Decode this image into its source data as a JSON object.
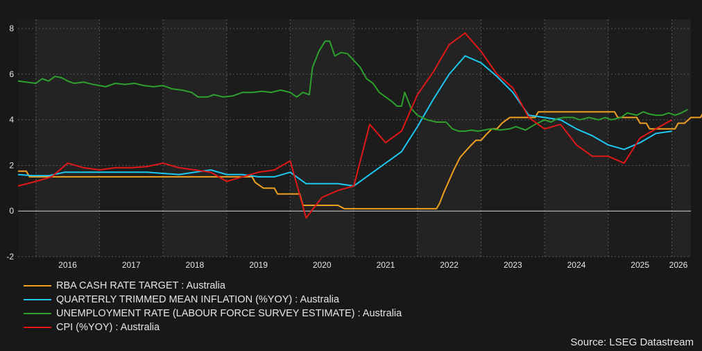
{
  "chart_data": {
    "type": "line",
    "ylim": [
      -2,
      8.4
    ],
    "yticks": [
      -2,
      0,
      2,
      4,
      6,
      8
    ],
    "xlim": [
      2015.72,
      2026.3
    ],
    "xticks": [
      "2016",
      "2017",
      "2018",
      "2019",
      "2020",
      "2021",
      "2022",
      "2023",
      "2024",
      "2025",
      "2026"
    ],
    "grid": true,
    "legend_position": "bottom-left",
    "source": "Source: LSEG Datastream",
    "series": [
      {
        "name": "RBA CASH RATE TARGET : Australia",
        "color": "#f0a020",
        "points": [
          [
            2015.72,
            1.75
          ],
          [
            2015.85,
            1.75
          ],
          [
            2015.9,
            1.5
          ],
          [
            2016.0,
            1.5
          ],
          [
            2016.35,
            1.5
          ],
          [
            2016.5,
            1.5
          ],
          [
            2016.6,
            1.5
          ],
          [
            2017.0,
            1.5
          ],
          [
            2018.0,
            1.5
          ],
          [
            2018.5,
            1.5
          ],
          [
            2019.0,
            1.5
          ],
          [
            2019.4,
            1.5
          ],
          [
            2019.45,
            1.25
          ],
          [
            2019.58,
            1.0
          ],
          [
            2019.75,
            1.0
          ],
          [
            2019.8,
            0.75
          ],
          [
            2020.15,
            0.75
          ],
          [
            2020.2,
            0.25
          ],
          [
            2020.75,
            0.25
          ],
          [
            2020.85,
            0.1
          ],
          [
            2021.5,
            0.1
          ],
          [
            2022.3,
            0.1
          ],
          [
            2022.35,
            0.35
          ],
          [
            2022.42,
            0.85
          ],
          [
            2022.5,
            1.35
          ],
          [
            2022.58,
            1.85
          ],
          [
            2022.67,
            2.35
          ],
          [
            2022.75,
            2.6
          ],
          [
            2022.83,
            2.85
          ],
          [
            2022.92,
            3.1
          ],
          [
            2023.0,
            3.1
          ],
          [
            2023.08,
            3.35
          ],
          [
            2023.17,
            3.6
          ],
          [
            2023.25,
            3.6
          ],
          [
            2023.33,
            3.85
          ],
          [
            2023.45,
            4.1
          ],
          [
            2023.85,
            4.1
          ],
          [
            2023.9,
            4.35
          ],
          [
            2024.5,
            4.35
          ],
          [
            2025.1,
            4.35
          ],
          [
            2025.15,
            4.1
          ],
          [
            2025.45,
            4.1
          ],
          [
            2025.5,
            3.85
          ],
          [
            2025.6,
            3.85
          ],
          [
            2025.65,
            3.6
          ],
          [
            2025.95,
            3.6
          ],
          [
            2026.05,
            3.6
          ],
          [
            2026.1,
            3.85
          ],
          [
            2026.2,
            3.85
          ],
          [
            2026.3,
            4.1
          ],
          [
            2026.45,
            4.1
          ],
          [
            2026.5,
            4.35
          ],
          [
            2026.58,
            4.35
          ]
        ]
      },
      {
        "name": "QUARTERLY TRIMMED MEAN INFLATION (%YOY) : Australia",
        "color": "#1ec8f0",
        "points": [
          [
            2015.72,
            1.6
          ],
          [
            2015.95,
            1.55
          ],
          [
            2016.2,
            1.55
          ],
          [
            2016.45,
            1.7
          ],
          [
            2016.7,
            1.7
          ],
          [
            2017.0,
            1.7
          ],
          [
            2017.25,
            1.7
          ],
          [
            2017.5,
            1.7
          ],
          [
            2017.75,
            1.7
          ],
          [
            2018.0,
            1.65
          ],
          [
            2018.25,
            1.6
          ],
          [
            2018.5,
            1.7
          ],
          [
            2018.75,
            1.8
          ],
          [
            2019.0,
            1.6
          ],
          [
            2019.25,
            1.6
          ],
          [
            2019.5,
            1.5
          ],
          [
            2019.75,
            1.5
          ],
          [
            2020.0,
            1.7
          ],
          [
            2020.25,
            1.2
          ],
          [
            2020.5,
            1.2
          ],
          [
            2020.75,
            1.2
          ],
          [
            2021.0,
            1.1
          ],
          [
            2021.25,
            1.6
          ],
          [
            2021.5,
            2.1
          ],
          [
            2021.75,
            2.6
          ],
          [
            2022.0,
            3.7
          ],
          [
            2022.25,
            4.9
          ],
          [
            2022.5,
            6.0
          ],
          [
            2022.75,
            6.8
          ],
          [
            2023.0,
            6.5
          ],
          [
            2023.25,
            5.9
          ],
          [
            2023.5,
            5.2
          ],
          [
            2023.75,
            4.2
          ],
          [
            2024.0,
            4.1
          ],
          [
            2024.25,
            4.0
          ],
          [
            2024.5,
            3.6
          ],
          [
            2024.75,
            3.3
          ],
          [
            2025.0,
            2.9
          ],
          [
            2025.25,
            2.7
          ],
          [
            2025.5,
            3.0
          ],
          [
            2025.75,
            3.4
          ],
          [
            2026.0,
            3.5
          ]
        ]
      },
      {
        "name": "UNEMPLOYMENT RATE (LABOUR FORCE SURVEY ESTIMATE) : Australia",
        "color": "#2ea02e",
        "points": [
          [
            2015.72,
            5.7
          ],
          [
            2015.85,
            5.65
          ],
          [
            2016.0,
            5.6
          ],
          [
            2016.1,
            5.8
          ],
          [
            2016.2,
            5.7
          ],
          [
            2016.3,
            5.9
          ],
          [
            2016.4,
            5.85
          ],
          [
            2016.5,
            5.7
          ],
          [
            2016.6,
            5.6
          ],
          [
            2016.75,
            5.65
          ],
          [
            2016.9,
            5.55
          ],
          [
            2017.0,
            5.5
          ],
          [
            2017.1,
            5.45
          ],
          [
            2017.25,
            5.6
          ],
          [
            2017.4,
            5.55
          ],
          [
            2017.55,
            5.6
          ],
          [
            2017.7,
            5.5
          ],
          [
            2017.85,
            5.45
          ],
          [
            2018.0,
            5.5
          ],
          [
            2018.15,
            5.35
          ],
          [
            2018.3,
            5.3
          ],
          [
            2018.45,
            5.2
          ],
          [
            2018.55,
            5.0
          ],
          [
            2018.7,
            5.0
          ],
          [
            2018.8,
            5.1
          ],
          [
            2018.95,
            5.0
          ],
          [
            2019.1,
            5.05
          ],
          [
            2019.25,
            5.2
          ],
          [
            2019.4,
            5.2
          ],
          [
            2019.55,
            5.25
          ],
          [
            2019.7,
            5.2
          ],
          [
            2019.85,
            5.3
          ],
          [
            2020.0,
            5.2
          ],
          [
            2020.1,
            5.0
          ],
          [
            2020.2,
            5.2
          ],
          [
            2020.3,
            5.1
          ],
          [
            2020.35,
            6.3
          ],
          [
            2020.45,
            7.0
          ],
          [
            2020.55,
            7.45
          ],
          [
            2020.62,
            7.45
          ],
          [
            2020.7,
            6.8
          ],
          [
            2020.8,
            6.95
          ],
          [
            2020.9,
            6.9
          ],
          [
            2021.0,
            6.6
          ],
          [
            2021.1,
            6.3
          ],
          [
            2021.2,
            5.8
          ],
          [
            2021.3,
            5.6
          ],
          [
            2021.4,
            5.2
          ],
          [
            2021.5,
            5.0
          ],
          [
            2021.6,
            4.8
          ],
          [
            2021.68,
            4.6
          ],
          [
            2021.75,
            4.6
          ],
          [
            2021.8,
            5.2
          ],
          [
            2021.9,
            4.5
          ],
          [
            2022.0,
            4.2
          ],
          [
            2022.15,
            4.0
          ],
          [
            2022.3,
            3.9
          ],
          [
            2022.45,
            3.9
          ],
          [
            2022.55,
            3.6
          ],
          [
            2022.65,
            3.5
          ],
          [
            2022.75,
            3.5
          ],
          [
            2022.85,
            3.55
          ],
          [
            2022.95,
            3.5
          ],
          [
            2023.05,
            3.55
          ],
          [
            2023.15,
            3.6
          ],
          [
            2023.3,
            3.55
          ],
          [
            2023.45,
            3.6
          ],
          [
            2023.55,
            3.7
          ],
          [
            2023.7,
            3.55
          ],
          [
            2023.85,
            3.8
          ],
          [
            2024.0,
            4.0
          ],
          [
            2024.1,
            3.9
          ],
          [
            2024.2,
            4.05
          ],
          [
            2024.3,
            4.1
          ],
          [
            2024.45,
            4.1
          ],
          [
            2024.55,
            4.0
          ],
          [
            2024.7,
            4.1
          ],
          [
            2024.85,
            4.0
          ],
          [
            2024.95,
            4.1
          ],
          [
            2025.05,
            4.0
          ],
          [
            2025.2,
            4.1
          ],
          [
            2025.3,
            4.3
          ],
          [
            2025.45,
            4.2
          ],
          [
            2025.55,
            4.35
          ],
          [
            2025.65,
            4.25
          ],
          [
            2025.75,
            4.2
          ],
          [
            2025.85,
            4.2
          ],
          [
            2025.95,
            4.3
          ],
          [
            2026.05,
            4.2
          ],
          [
            2026.15,
            4.3
          ],
          [
            2026.25,
            4.45
          ]
        ]
      },
      {
        "name": "CPI (%YOY) : Australia",
        "color": "#e01818",
        "points": [
          [
            2015.72,
            1.1
          ],
          [
            2016.0,
            1.3
          ],
          [
            2016.25,
            1.5
          ],
          [
            2016.5,
            2.1
          ],
          [
            2016.75,
            1.9
          ],
          [
            2017.0,
            1.8
          ],
          [
            2017.25,
            1.9
          ],
          [
            2017.5,
            1.9
          ],
          [
            2017.75,
            1.95
          ],
          [
            2018.0,
            2.1
          ],
          [
            2018.25,
            1.9
          ],
          [
            2018.5,
            1.8
          ],
          [
            2018.75,
            1.7
          ],
          [
            2019.0,
            1.3
          ],
          [
            2019.25,
            1.5
          ],
          [
            2019.5,
            1.7
          ],
          [
            2019.75,
            1.8
          ],
          [
            2020.0,
            2.2
          ],
          [
            2020.25,
            -0.3
          ],
          [
            2020.5,
            0.6
          ],
          [
            2020.75,
            0.9
          ],
          [
            2021.0,
            1.1
          ],
          [
            2021.25,
            3.8
          ],
          [
            2021.5,
            3.0
          ],
          [
            2021.75,
            3.5
          ],
          [
            2022.0,
            5.1
          ],
          [
            2022.25,
            6.1
          ],
          [
            2022.5,
            7.3
          ],
          [
            2022.75,
            7.8
          ],
          [
            2023.0,
            7.0
          ],
          [
            2023.25,
            6.0
          ],
          [
            2023.5,
            5.4
          ],
          [
            2023.75,
            4.1
          ],
          [
            2024.0,
            3.6
          ],
          [
            2024.25,
            3.8
          ],
          [
            2024.5,
            2.9
          ],
          [
            2024.75,
            2.4
          ],
          [
            2025.0,
            2.4
          ],
          [
            2025.25,
            2.1
          ],
          [
            2025.5,
            3.2
          ],
          [
            2025.75,
            3.6
          ],
          [
            2026.0,
            4.0
          ]
        ]
      }
    ]
  }
}
